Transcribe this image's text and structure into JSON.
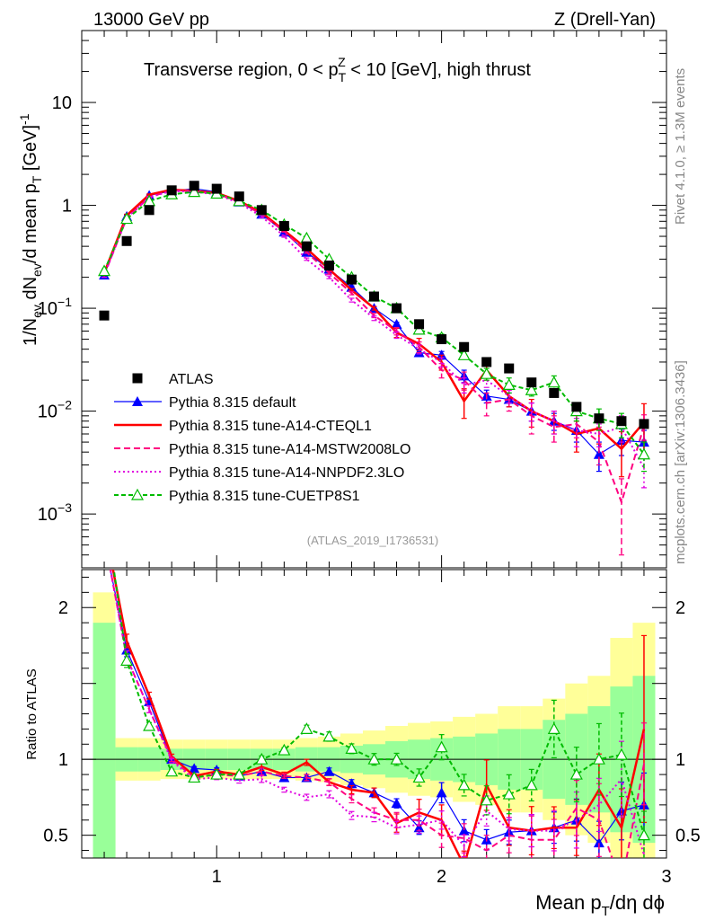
{
  "header": {
    "left_label": "13000 GeV pp",
    "right_label": "Z (Drell-Yan)"
  },
  "side_labels": {
    "rivet": "Rivet 4.1.0, ≥ 1.3M events",
    "mcplots": "mcplots.cern.ch [arXiv:1306.3436]"
  },
  "chart_data": [
    {
      "type": "scatter",
      "panel": "main",
      "title": "Transverse region, 0 < p_T^Z < 10 [GeV], high thrust",
      "title_parts": {
        "prefix": "Transverse region, 0 < p",
        "sub": "T",
        "sup": "Z",
        "suffix": " < 10 [GeV], high thrust"
      },
      "watermark": "(ATLAS_2019_I1736531)",
      "ylabel": "1/N_ev dN_ev/d mean p_T [GeV]^-1",
      "ylabel_parts": {
        "p1": "1/N",
        "s1": "ev",
        "p2": " dN",
        "s2": "ev",
        "p3": "/d mean p",
        "s3": "T",
        "p4": " [GeV]",
        "sup": "-1"
      },
      "yscale": "log",
      "ylim": [
        0.0003,
        50
      ],
      "xlim": [
        0.4,
        3.0
      ],
      "yticks": [
        {
          "value": 10,
          "label": "10"
        },
        {
          "value": 1,
          "label": "1"
        },
        {
          "value": 0.1,
          "base": "10",
          "exp": "−1"
        },
        {
          "value": 0.01,
          "base": "10",
          "exp": "−2"
        },
        {
          "value": 0.001,
          "base": "10",
          "exp": "−3"
        }
      ],
      "legend_position": "lower-left",
      "x": [
        0.5,
        0.6,
        0.7,
        0.8,
        0.9,
        1.0,
        1.1,
        1.2,
        1.3,
        1.4,
        1.5,
        1.6,
        1.7,
        1.8,
        1.9,
        2.0,
        2.1,
        2.2,
        2.3,
        2.4,
        2.5,
        2.6,
        2.7,
        2.8,
        2.9
      ],
      "series": [
        {
          "name": "ATLAS",
          "color": "#000000",
          "style": "square",
          "values": [
            0.085,
            0.45,
            0.9,
            1.4,
            1.55,
            1.45,
            1.22,
            0.9,
            0.63,
            0.4,
            0.26,
            0.19,
            0.13,
            0.1,
            0.07,
            0.05,
            0.042,
            0.03,
            0.026,
            0.019,
            0.015,
            0.011,
            0.0085,
            0.008,
            0.0075
          ]
        },
        {
          "name": "Pythia 8.315 default",
          "color": "#0000ff",
          "style": "triangle",
          "values": [
            0.21,
            0.78,
            1.25,
            1.38,
            1.45,
            1.35,
            1.08,
            0.82,
            0.55,
            0.35,
            0.24,
            0.16,
            0.1,
            0.07,
            0.037,
            0.035,
            0.022,
            0.014,
            0.013,
            0.01,
            0.008,
            0.0065,
            0.0038,
            0.0052,
            0.005
          ],
          "errors": [
            0.01,
            0.02,
            0.02,
            0.02,
            0.02,
            0.02,
            0.02,
            0.02,
            0.01,
            0.008,
            0.006,
            0.005,
            0.004,
            0.003,
            0.003,
            0.003,
            0.003,
            0.002,
            0.002,
            0.002,
            0.0015,
            0.0015,
            0.0012,
            0.0015,
            0.0015
          ]
        },
        {
          "name": "Pythia 8.315 tune-A14-CTEQL1",
          "color": "#ff0000",
          "style": "solid",
          "values": [
            0.22,
            0.8,
            1.27,
            1.42,
            1.38,
            1.32,
            1.1,
            0.85,
            0.57,
            0.38,
            0.24,
            0.15,
            0.1,
            0.058,
            0.045,
            0.03,
            0.0125,
            0.025,
            0.014,
            0.01,
            0.008,
            0.006,
            0.0068,
            0.0043,
            0.0078
          ],
          "errors": [
            0.01,
            0.02,
            0.02,
            0.02,
            0.02,
            0.02,
            0.02,
            0.02,
            0.01,
            0.008,
            0.006,
            0.005,
            0.004,
            0.006,
            0.006,
            0.005,
            0.004,
            0.005,
            0.003,
            0.003,
            0.002,
            0.002,
            0.002,
            0.002,
            0.004
          ]
        },
        {
          "name": "Pythia 8.315 tune-A14-MSTW2008LO",
          "color": "#ff0080",
          "style": "dashed",
          "values": [
            0.21,
            0.75,
            1.2,
            1.4,
            1.37,
            1.3,
            1.08,
            0.82,
            0.56,
            0.35,
            0.22,
            0.14,
            0.085,
            0.06,
            0.042,
            0.025,
            0.02,
            0.012,
            0.013,
            0.009,
            0.007,
            0.0075,
            0.005,
            0.0013,
            0.0072
          ],
          "errors": [
            0.01,
            0.02,
            0.02,
            0.02,
            0.02,
            0.02,
            0.02,
            0.02,
            0.01,
            0.008,
            0.006,
            0.005,
            0.004,
            0.005,
            0.005,
            0.004,
            0.004,
            0.003,
            0.003,
            0.003,
            0.002,
            0.002,
            0.002,
            0.0009,
            0.002
          ]
        },
        {
          "name": "Pythia 8.315 tune-A14-NNPDF2.3LO",
          "color": "#e000e0",
          "style": "dotted",
          "values": [
            0.21,
            0.75,
            1.2,
            1.38,
            1.35,
            1.28,
            1.05,
            0.78,
            0.5,
            0.3,
            0.2,
            0.12,
            0.08,
            0.055,
            0.04,
            0.03,
            0.018,
            0.02,
            0.014,
            0.01,
            0.008,
            0.0065,
            0.006,
            0.007,
            0.0028
          ],
          "errors": [
            0.01,
            0.02,
            0.02,
            0.02,
            0.02,
            0.02,
            0.02,
            0.02,
            0.01,
            0.008,
            0.006,
            0.005,
            0.004,
            0.004,
            0.004,
            0.003,
            0.003,
            0.003,
            0.002,
            0.002,
            0.002,
            0.002,
            0.0015,
            0.002,
            0.001
          ]
        },
        {
          "name": "Pythia 8.315 tune-CUETP8S1",
          "color": "#00bb00",
          "style": "dashed-open-triangle",
          "values": [
            0.23,
            0.74,
            1.1,
            1.28,
            1.35,
            1.3,
            1.1,
            0.9,
            0.65,
            0.48,
            0.3,
            0.2,
            0.13,
            0.1,
            0.062,
            0.052,
            0.035,
            0.023,
            0.018,
            0.016,
            0.019,
            0.01,
            0.0085,
            0.0075,
            0.0038
          ],
          "errors": [
            0.01,
            0.02,
            0.02,
            0.02,
            0.02,
            0.02,
            0.02,
            0.02,
            0.01,
            0.01,
            0.008,
            0.006,
            0.005,
            0.004,
            0.004,
            0.004,
            0.003,
            0.003,
            0.003,
            0.002,
            0.003,
            0.002,
            0.002,
            0.002,
            0.0012
          ]
        }
      ]
    },
    {
      "type": "line",
      "panel": "ratio",
      "ylabel": "Ratio to ATLAS",
      "ylim": [
        0.35,
        2.25
      ],
      "xlim": [
        0.4,
        3.0
      ],
      "yticks": [
        0.5,
        1,
        2
      ],
      "xlabel": "Mean p_T/dη dϕ",
      "xlabel_parts": {
        "p1": "Mean p",
        "sub": "T",
        "p2": "/dη dϕ"
      },
      "xticks": [
        1,
        2,
        3
      ],
      "x": [
        0.5,
        0.6,
        0.7,
        0.8,
        0.9,
        1.0,
        1.1,
        1.2,
        1.3,
        1.4,
        1.5,
        1.6,
        1.7,
        1.8,
        1.9,
        2.0,
        2.1,
        2.2,
        2.3,
        2.4,
        2.5,
        2.6,
        2.7,
        2.8,
        2.9
      ],
      "bands": {
        "bin_edges": [
          0.45,
          0.55,
          0.65,
          0.75,
          0.85,
          0.95,
          1.05,
          1.15,
          1.25,
          1.35,
          1.45,
          1.55,
          1.65,
          1.75,
          1.85,
          1.95,
          2.05,
          2.15,
          2.25,
          2.35,
          2.45,
          2.55,
          2.65,
          2.75,
          2.85,
          2.95
        ],
        "stat": [
          0.9,
          0.08,
          0.08,
          0.07,
          0.07,
          0.07,
          0.07,
          0.07,
          0.07,
          0.08,
          0.08,
          0.09,
          0.1,
          0.12,
          0.13,
          0.14,
          0.15,
          0.17,
          0.2,
          0.2,
          0.26,
          0.3,
          0.35,
          0.48,
          0.55
        ],
        "total": [
          1.1,
          0.14,
          0.14,
          0.13,
          0.13,
          0.13,
          0.13,
          0.13,
          0.13,
          0.14,
          0.15,
          0.17,
          0.19,
          0.22,
          0.24,
          0.25,
          0.28,
          0.3,
          0.35,
          0.35,
          0.4,
          0.5,
          0.55,
          0.8,
          0.9
        ],
        "stat_color": "#99ff99",
        "total_color": "#ffff99"
      },
      "series": [
        {
          "name": "Pythia 8.315 default",
          "values": [
            2.45,
            1.72,
            1.38,
            1.0,
            0.94,
            0.93,
            0.89,
            0.92,
            0.88,
            0.88,
            0.92,
            0.84,
            0.78,
            0.71,
            0.55,
            0.78,
            0.53,
            0.47,
            0.52,
            0.53,
            0.55,
            0.6,
            0.45,
            0.66,
            0.7
          ]
        },
        {
          "name": "Pythia 8.315 tune-A14-CTEQL1",
          "values": [
            2.55,
            1.78,
            1.42,
            1.02,
            0.89,
            0.92,
            0.9,
            0.95,
            0.9,
            0.98,
            0.85,
            0.8,
            0.78,
            0.58,
            0.65,
            0.6,
            0.3,
            0.83,
            0.55,
            0.53,
            0.55,
            0.55,
            0.8,
            0.55,
            1.2
          ]
        },
        {
          "name": "Pythia 8.315 tune-A14-MSTW2008LO",
          "values": [
            2.47,
            1.67,
            1.33,
            1.0,
            0.88,
            0.9,
            0.89,
            0.92,
            0.89,
            0.88,
            0.85,
            0.74,
            0.65,
            0.6,
            0.6,
            0.5,
            0.48,
            0.4,
            0.5,
            0.47,
            0.47,
            0.68,
            0.6,
            0.17,
            0.97
          ]
        },
        {
          "name": "Pythia 8.315 tune-A14-NNPDF2.3LO",
          "values": [
            2.47,
            1.67,
            1.33,
            0.99,
            0.87,
            0.88,
            0.86,
            0.87,
            0.8,
            0.75,
            0.77,
            0.63,
            0.62,
            0.55,
            0.57,
            0.6,
            0.43,
            0.66,
            0.54,
            0.53,
            0.53,
            0.6,
            0.7,
            0.87,
            0.37
          ]
        },
        {
          "name": "Pythia 8.315 tune-CUETP8S1",
          "values": [
            2.7,
            1.65,
            1.22,
            0.92,
            0.88,
            0.9,
            0.9,
            1.0,
            1.06,
            1.2,
            1.15,
            1.07,
            1.0,
            1.0,
            0.88,
            1.08,
            0.83,
            0.73,
            0.77,
            0.83,
            1.2,
            0.9,
            1.0,
            1.03,
            0.5
          ]
        }
      ]
    }
  ]
}
